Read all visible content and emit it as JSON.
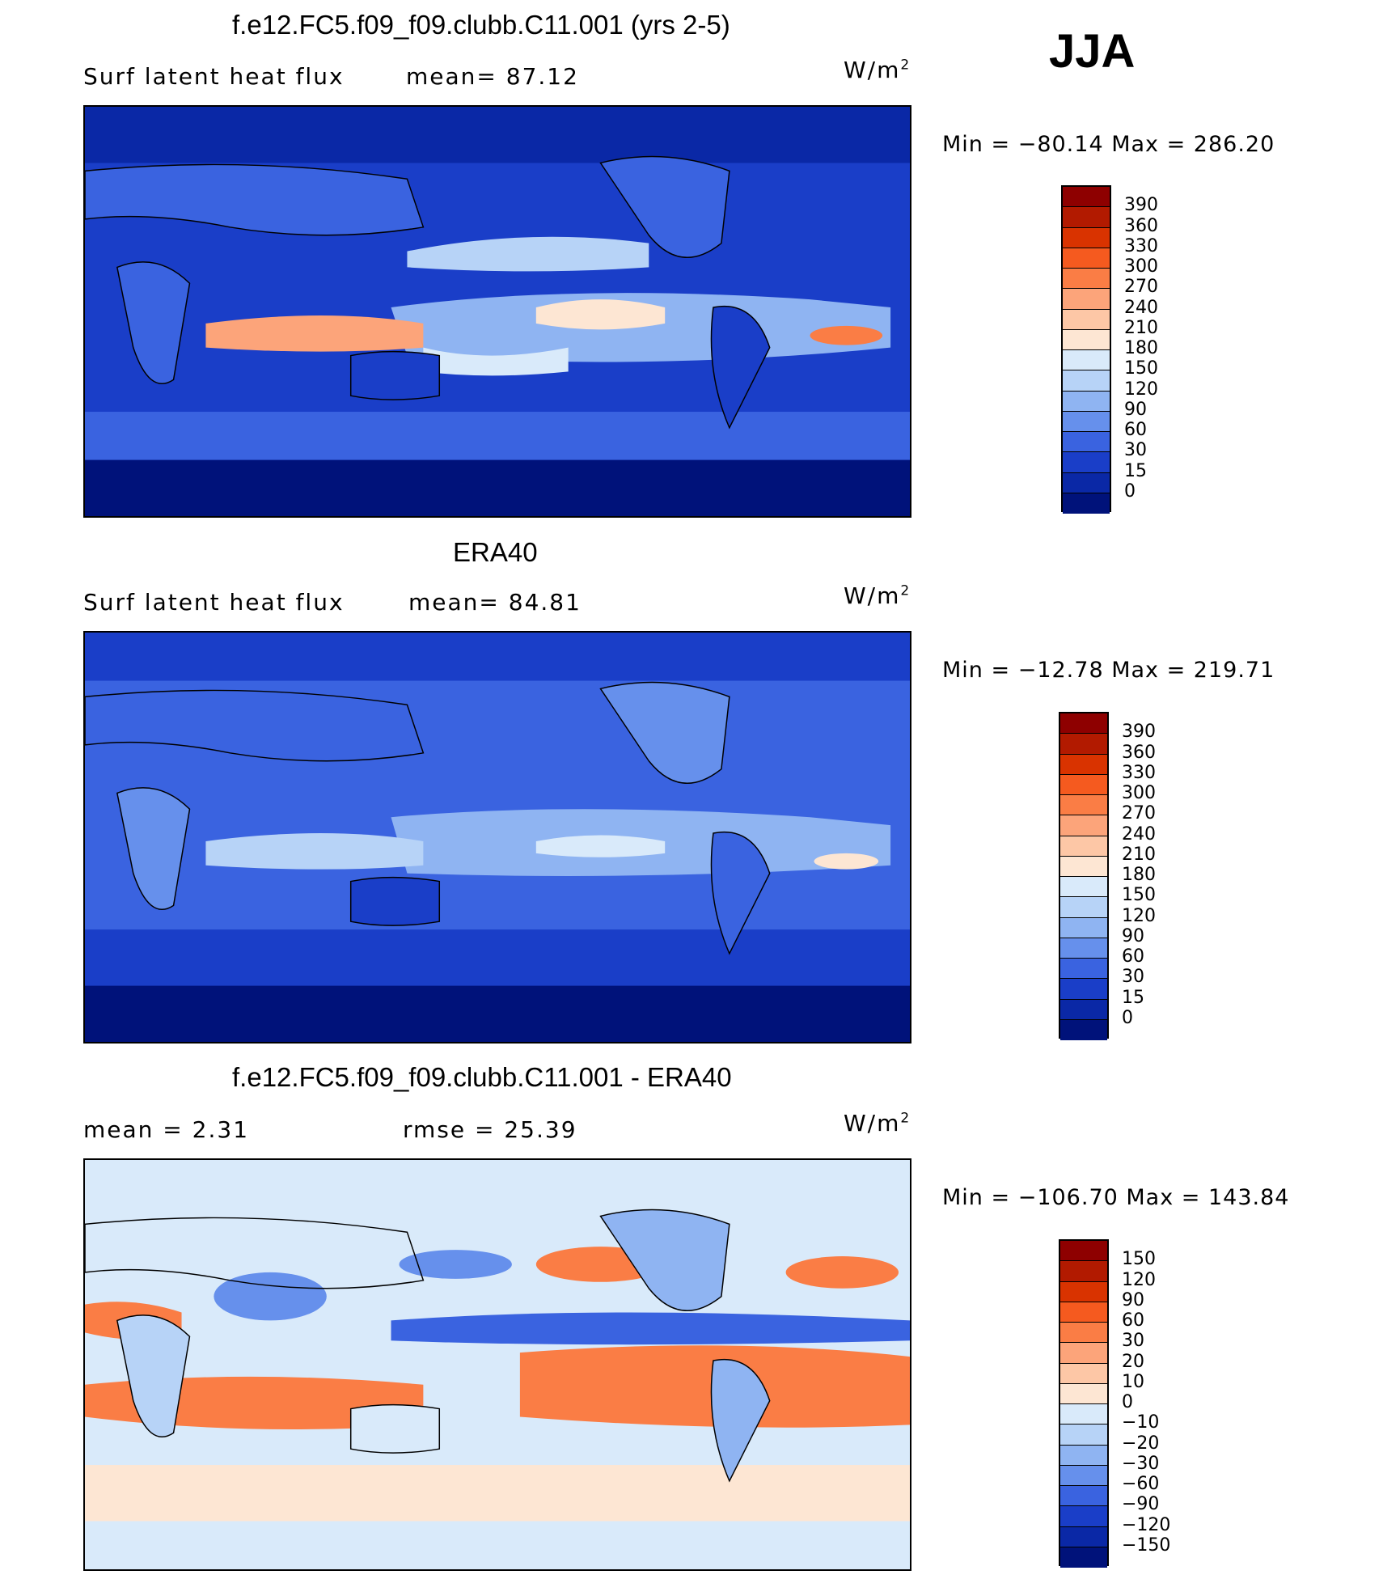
{
  "season": "JJA",
  "units_label": "W/m",
  "units_sup": "2",
  "panels": [
    {
      "id": "model",
      "title": "f.e12.FC5.f09_f09.clubb.C11.001 (yrs 2-5)",
      "left_text": "Surf latent heat flux",
      "mid_text": "mean=  87.12",
      "minmax": "Min = −80.14 Max = 286.20",
      "levels": [
        "390",
        "360",
        "330",
        "300",
        "270",
        "240",
        "210",
        "180",
        "150",
        "120",
        "90",
        "60",
        "30",
        "15",
        "0"
      ],
      "colors": [
        "#8e0000",
        "#b21a00",
        "#d93300",
        "#f55a1f",
        "#fa7d45",
        "#fca47a",
        "#fdc7a6",
        "#fde6d3",
        "#d9eafa",
        "#b7d3f7",
        "#8fb4f2",
        "#6690ec",
        "#3a63e0",
        "#1a3ec8",
        "#0a28a6",
        "#00127a"
      ]
    },
    {
      "id": "obs",
      "title": "ERA40",
      "left_text": "Surf latent heat flux",
      "mid_text": "mean=  84.81",
      "minmax": "Min = −12.78 Max = 219.71",
      "levels": [
        "390",
        "360",
        "330",
        "300",
        "270",
        "240",
        "210",
        "180",
        "150",
        "120",
        "90",
        "60",
        "30",
        "15",
        "0"
      ],
      "colors": [
        "#8e0000",
        "#b21a00",
        "#d93300",
        "#f55a1f",
        "#fa7d45",
        "#fca47a",
        "#fdc7a6",
        "#fde6d3",
        "#d9eafa",
        "#b7d3f7",
        "#8fb4f2",
        "#6690ec",
        "#3a63e0",
        "#1a3ec8",
        "#0a28a6",
        "#00127a"
      ]
    },
    {
      "id": "diff",
      "title": "f.e12.FC5.f09_f09.clubb.C11.001 - ERA40",
      "left_text": "mean =   2.31",
      "mid_text": "rmse =   25.39",
      "minmax": "Min = −106.70 Max = 143.84",
      "levels": [
        "150",
        "120",
        "90",
        "60",
        "30",
        "20",
        "10",
        "0",
        "−10",
        "−20",
        "−30",
        "−60",
        "−90",
        "−120",
        "−150"
      ],
      "colors": [
        "#8e0000",
        "#b21a00",
        "#d93300",
        "#f55a1f",
        "#fa7d45",
        "#fca47a",
        "#fdc7a6",
        "#fde6d3",
        "#d9eafa",
        "#b7d3f7",
        "#8fb4f2",
        "#6690ec",
        "#3a63e0",
        "#1a3ec8",
        "#0a28a6",
        "#00127a"
      ]
    }
  ]
}
